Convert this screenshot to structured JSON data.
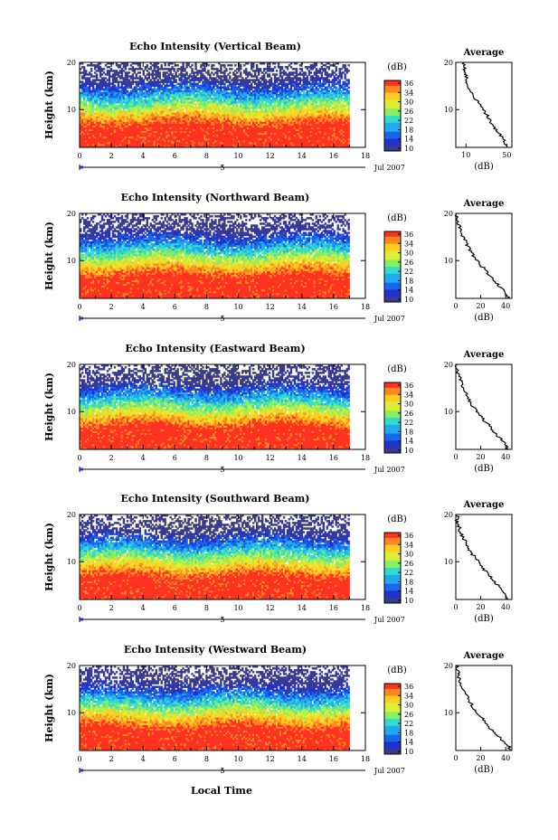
{
  "figure": {
    "xlabel": "Local Time",
    "date_label": "Jul 2007",
    "day_marker": "5",
    "colorbar_unit": "(dB)",
    "colorbar_ticks": [
      "36",
      "34",
      "30",
      "26",
      "22",
      "18",
      "14",
      "10"
    ],
    "avg_title": "Average",
    "avg_xlabel": "(dB)",
    "ylabel": "Height (km)"
  },
  "colors": {
    "colormap": [
      "#3a3a8f",
      "#2233cc",
      "#1a66ee",
      "#22aaee",
      "#33ddcc",
      "#88ee66",
      "#ddee33",
      "#ffcc22",
      "#ff8822",
      "#ff3322"
    ],
    "blank": "#ffffff"
  },
  "chart_data": [
    {
      "type": "heatmap",
      "title": "Echo Intensity (Vertical Beam)",
      "xticks": [
        "0",
        "2",
        "4",
        "6",
        "8",
        "10",
        "12",
        "14",
        "16",
        "18"
      ],
      "yticks": [
        "20",
        "10"
      ],
      "xlim": [
        0,
        18
      ],
      "ylim": [
        2,
        20
      ],
      "data_end_hour": 17,
      "colorbar_range": [
        10,
        36
      ],
      "average": {
        "xticks": [
          "10",
          "50"
        ],
        "xlim": [
          0,
          55
        ],
        "profile": [
          [
            2,
            50
          ],
          [
            3,
            48
          ],
          [
            4,
            46
          ],
          [
            5,
            42
          ],
          [
            6,
            38
          ],
          [
            7,
            35
          ],
          [
            8,
            33
          ],
          [
            9,
            30
          ],
          [
            10,
            27
          ],
          [
            11,
            24
          ],
          [
            12,
            20
          ],
          [
            13,
            16
          ],
          [
            14,
            14
          ],
          [
            15,
            12
          ],
          [
            16,
            11
          ],
          [
            17,
            10
          ],
          [
            18,
            9
          ],
          [
            19,
            8
          ],
          [
            20,
            8
          ]
        ]
      }
    },
    {
      "type": "heatmap",
      "title": "Echo Intensity (Northward Beam)",
      "xticks": [
        "0",
        "2",
        "4",
        "6",
        "8",
        "10",
        "12",
        "14",
        "16",
        "18"
      ],
      "yticks": [
        "20",
        "10"
      ],
      "xlim": [
        0,
        18
      ],
      "ylim": [
        2,
        20
      ],
      "data_end_hour": 17,
      "colorbar_range": [
        10,
        36
      ],
      "average": {
        "xticks": [
          "0",
          "20",
          "40"
        ],
        "xlim": [
          0,
          45
        ],
        "profile": [
          [
            2,
            42
          ],
          [
            3,
            40
          ],
          [
            4,
            37
          ],
          [
            5,
            34
          ],
          [
            6,
            30
          ],
          [
            7,
            27
          ],
          [
            8,
            24
          ],
          [
            9,
            20
          ],
          [
            10,
            17
          ],
          [
            11,
            14
          ],
          [
            12,
            12
          ],
          [
            13,
            10
          ],
          [
            14,
            8
          ],
          [
            15,
            6
          ],
          [
            16,
            4
          ],
          [
            17,
            3
          ],
          [
            18,
            2
          ],
          [
            19,
            1
          ],
          [
            20,
            1
          ]
        ]
      }
    },
    {
      "type": "heatmap",
      "title": "Echo Intensity (Eastward Beam)",
      "xticks": [
        "0",
        "2",
        "4",
        "6",
        "8",
        "10",
        "12",
        "14",
        "16",
        "18"
      ],
      "yticks": [
        "20",
        "10"
      ],
      "xlim": [
        0,
        18
      ],
      "ylim": [
        2,
        20
      ],
      "data_end_hour": 17,
      "colorbar_range": [
        10,
        36
      ],
      "average": {
        "xticks": [
          "0",
          "20",
          "40"
        ],
        "xlim": [
          0,
          45
        ],
        "profile": [
          [
            2,
            42
          ],
          [
            3,
            40
          ],
          [
            4,
            37
          ],
          [
            5,
            33
          ],
          [
            6,
            30
          ],
          [
            7,
            27
          ],
          [
            8,
            23
          ],
          [
            9,
            20
          ],
          [
            10,
            17
          ],
          [
            11,
            14
          ],
          [
            12,
            12
          ],
          [
            13,
            10
          ],
          [
            14,
            8
          ],
          [
            15,
            6
          ],
          [
            16,
            5
          ],
          [
            17,
            4
          ],
          [
            18,
            2
          ],
          [
            19,
            1
          ],
          [
            20,
            1
          ]
        ]
      }
    },
    {
      "type": "heatmap",
      "title": "Echo Intensity (Southward Beam)",
      "xticks": [
        "0",
        "2",
        "4",
        "6",
        "8",
        "10",
        "12",
        "14",
        "16",
        "18"
      ],
      "yticks": [
        "20",
        "10"
      ],
      "xlim": [
        0,
        18
      ],
      "ylim": [
        2,
        20
      ],
      "data_end_hour": 17,
      "colorbar_range": [
        10,
        36
      ],
      "average": {
        "xticks": [
          "0",
          "20",
          "40"
        ],
        "xlim": [
          0,
          45
        ],
        "profile": [
          [
            2,
            42
          ],
          [
            3,
            40
          ],
          [
            4,
            37
          ],
          [
            5,
            34
          ],
          [
            6,
            30
          ],
          [
            7,
            27
          ],
          [
            8,
            24
          ],
          [
            9,
            21
          ],
          [
            10,
            18
          ],
          [
            11,
            15
          ],
          [
            12,
            12
          ],
          [
            13,
            10
          ],
          [
            14,
            8
          ],
          [
            15,
            6
          ],
          [
            16,
            4
          ],
          [
            17,
            3
          ],
          [
            18,
            2
          ],
          [
            19,
            1
          ],
          [
            20,
            1
          ]
        ]
      }
    },
    {
      "type": "heatmap",
      "title": "Echo Intensity (Westward Beam)",
      "xticks": [
        "0",
        "2",
        "4",
        "6",
        "8",
        "10",
        "12",
        "14",
        "16",
        "18"
      ],
      "yticks": [
        "20",
        "10"
      ],
      "xlim": [
        0,
        18
      ],
      "ylim": [
        2,
        20
      ],
      "data_end_hour": 17,
      "colorbar_range": [
        10,
        36
      ],
      "average": {
        "xticks": [
          "0",
          "20",
          "40"
        ],
        "xlim": [
          0,
          45
        ],
        "profile": [
          [
            2,
            44
          ],
          [
            3,
            42
          ],
          [
            4,
            38
          ],
          [
            5,
            34
          ],
          [
            6,
            30
          ],
          [
            7,
            27
          ],
          [
            8,
            24
          ],
          [
            9,
            20
          ],
          [
            10,
            17
          ],
          [
            11,
            14
          ],
          [
            12,
            12
          ],
          [
            13,
            10
          ],
          [
            14,
            8
          ],
          [
            15,
            6
          ],
          [
            16,
            4
          ],
          [
            17,
            3
          ],
          [
            18,
            2
          ],
          [
            19,
            1
          ],
          [
            20,
            1
          ]
        ]
      }
    }
  ]
}
